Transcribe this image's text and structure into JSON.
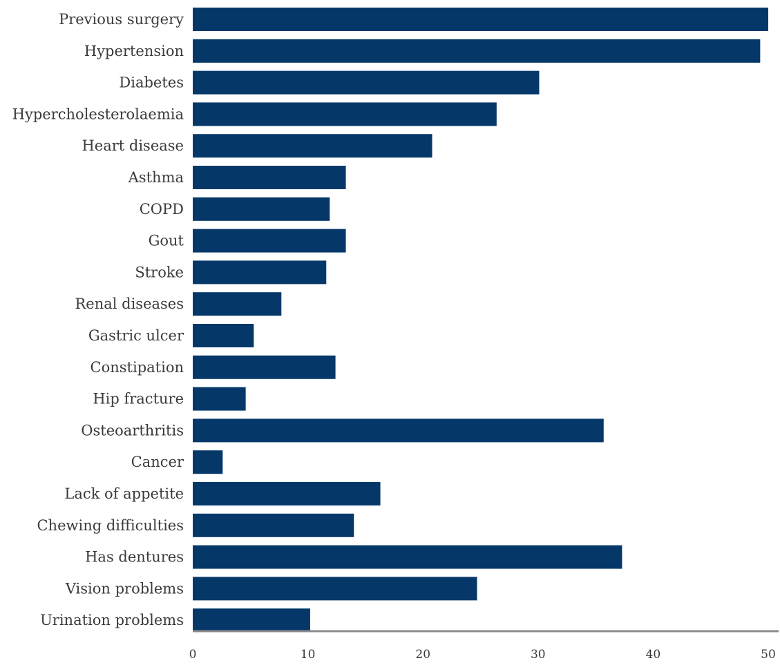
{
  "chart_data": {
    "type": "bar",
    "orientation": "horizontal",
    "title": "",
    "xlabel": "",
    "ylabel": "",
    "xlim": [
      0,
      50
    ],
    "xticks": [
      "0",
      "10",
      "20",
      "30",
      "40",
      "50"
    ],
    "grid": false,
    "legend": "none",
    "bar_color": "#053869",
    "categories": [
      "Previous surgery",
      "Hypertension",
      "Diabetes",
      "Hypercholesterolaemia",
      "Heart disease",
      "Asthma",
      "COPD",
      "Gout",
      "Stroke",
      "Renal diseases",
      "Gastric ulcer",
      "Constipation",
      "Hip fracture",
      "Osteoarthritis",
      "Cancer",
      "Lack of appetite",
      "Chewing difficulties",
      "Has dentures",
      "Vision problems",
      "Urination problems"
    ],
    "values": [
      50.0,
      49.3,
      30.1,
      26.4,
      20.8,
      13.3,
      11.9,
      13.3,
      11.6,
      7.7,
      5.3,
      12.4,
      4.6,
      35.7,
      2.6,
      16.3,
      14.0,
      37.3,
      24.7,
      10.2
    ]
  }
}
